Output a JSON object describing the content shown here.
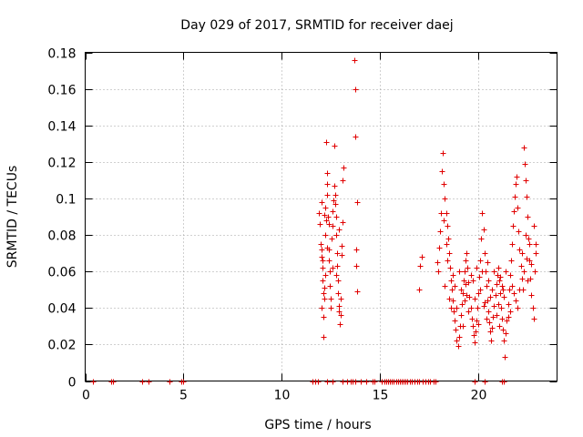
{
  "chart_data": {
    "type": "scatter",
    "title": "Day 029 of 2017, SRMTID for receiver daej",
    "xlabel": "GPS time / hours",
    "ylabel": "SRMTID / TECUs",
    "xlim": [
      0,
      24
    ],
    "ylim": [
      0,
      0.18
    ],
    "xticks": [
      0,
      5,
      10,
      15,
      20
    ],
    "xtick_labels": [
      "0",
      "5",
      "10",
      "15",
      "20"
    ],
    "yticks": [
      0,
      0.02,
      0.04,
      0.06,
      0.08,
      0.1,
      0.12,
      0.14,
      0.16,
      0.18
    ],
    "ytick_labels": [
      "0",
      "0.02",
      "0.04",
      "0.06",
      "0.08",
      "0.1",
      "0.12",
      "0.14",
      "0.16",
      "0.18"
    ],
    "grid": true,
    "marker": "+",
    "color": "#e00000",
    "series": [
      {
        "name": "SRMTID",
        "points": [
          [
            0.4,
            0.0
          ],
          [
            1.3,
            0.0
          ],
          [
            1.4,
            0.0
          ],
          [
            2.9,
            0.0
          ],
          [
            3.2,
            0.0
          ],
          [
            4.3,
            0.0
          ],
          [
            4.9,
            0.0
          ],
          [
            5.0,
            0.0
          ],
          [
            11.55,
            0.0
          ],
          [
            11.7,
            0.0
          ],
          [
            11.85,
            0.0
          ],
          [
            12.3,
            0.0
          ],
          [
            12.6,
            0.0
          ],
          [
            13.1,
            0.0
          ],
          [
            13.3,
            0.0
          ],
          [
            13.5,
            0.0
          ],
          [
            13.6,
            0.0
          ],
          [
            13.75,
            0.0
          ],
          [
            14.0,
            0.0
          ],
          [
            14.3,
            0.0
          ],
          [
            14.6,
            0.0
          ],
          [
            14.7,
            0.0
          ],
          [
            15.1,
            0.0
          ],
          [
            15.2,
            0.0
          ],
          [
            15.3,
            0.0
          ],
          [
            15.4,
            0.0
          ],
          [
            15.5,
            0.0
          ],
          [
            15.6,
            0.0
          ],
          [
            15.7,
            0.0
          ],
          [
            15.8,
            0.0
          ],
          [
            15.9,
            0.0
          ],
          [
            16.0,
            0.0
          ],
          [
            16.1,
            0.0
          ],
          [
            16.2,
            0.0
          ],
          [
            16.3,
            0.0
          ],
          [
            16.4,
            0.0
          ],
          [
            16.5,
            0.0
          ],
          [
            16.6,
            0.0
          ],
          [
            16.75,
            0.0
          ],
          [
            16.9,
            0.0
          ],
          [
            17.0,
            0.0
          ],
          [
            17.15,
            0.0
          ],
          [
            17.3,
            0.0
          ],
          [
            17.45,
            0.0
          ],
          [
            17.55,
            0.0
          ],
          [
            17.7,
            0.0
          ],
          [
            17.8,
            0.0
          ],
          [
            19.8,
            0.0
          ],
          [
            20.3,
            0.0
          ],
          [
            21.2,
            0.0
          ],
          [
            21.3,
            0.0
          ],
          [
            11.9,
            0.092
          ],
          [
            11.95,
            0.086
          ],
          [
            12.0,
            0.098
          ],
          [
            11.98,
            0.075
          ],
          [
            12.02,
            0.068
          ],
          [
            12.05,
            0.062
          ],
          [
            12.08,
            0.055
          ],
          [
            12.1,
            0.048
          ],
          [
            12.03,
            0.04
          ],
          [
            12.12,
            0.035
          ],
          [
            12.1,
            0.024
          ],
          [
            12.15,
            0.045
          ],
          [
            12.18,
            0.051
          ],
          [
            12.2,
            0.058
          ],
          [
            12.22,
            0.08
          ],
          [
            12.25,
            0.088
          ],
          [
            12.2,
            0.095
          ],
          [
            12.28,
            0.102
          ],
          [
            12.3,
            0.108
          ],
          [
            12.25,
            0.131
          ],
          [
            12.32,
            0.114
          ],
          [
            12.35,
            0.09
          ],
          [
            12.38,
            0.072
          ],
          [
            12.4,
            0.066
          ],
          [
            12.42,
            0.06
          ],
          [
            12.45,
            0.052
          ],
          [
            12.48,
            0.045
          ],
          [
            12.5,
            0.04
          ],
          [
            12.55,
            0.078
          ],
          [
            12.58,
            0.085
          ],
          [
            12.6,
            0.093
          ],
          [
            12.62,
            0.099
          ],
          [
            12.65,
            0.129
          ],
          [
            12.68,
            0.107
          ],
          [
            12.7,
            0.102
          ],
          [
            12.72,
            0.097
          ],
          [
            12.75,
            0.09
          ],
          [
            12.78,
            0.08
          ],
          [
            12.8,
            0.07
          ],
          [
            12.82,
            0.063
          ],
          [
            12.85,
            0.055
          ],
          [
            12.88,
            0.048
          ],
          [
            12.9,
            0.041
          ],
          [
            12.92,
            0.038
          ],
          [
            12.95,
            0.031
          ],
          [
            12.98,
            0.036
          ],
          [
            13.0,
            0.045
          ],
          [
            13.02,
            0.069
          ],
          [
            13.05,
            0.074
          ],
          [
            13.08,
            0.087
          ],
          [
            13.1,
            0.11
          ],
          [
            13.12,
            0.117
          ],
          [
            12.0,
            0.072
          ],
          [
            12.05,
            0.066
          ],
          [
            12.15,
            0.091
          ],
          [
            12.3,
            0.073
          ],
          [
            12.4,
            0.086
          ],
          [
            12.6,
            0.062
          ],
          [
            12.75,
            0.058
          ],
          [
            12.9,
            0.083
          ],
          [
            13.7,
            0.176
          ],
          [
            13.72,
            0.16
          ],
          [
            13.75,
            0.134
          ],
          [
            13.85,
            0.098
          ],
          [
            13.8,
            0.072
          ],
          [
            13.78,
            0.063
          ],
          [
            13.82,
            0.049
          ],
          [
            17.0,
            0.05
          ],
          [
            17.05,
            0.063
          ],
          [
            17.1,
            0.068
          ],
          [
            17.9,
            0.065
          ],
          [
            17.95,
            0.06
          ],
          [
            18.0,
            0.073
          ],
          [
            18.05,
            0.082
          ],
          [
            18.1,
            0.092
          ],
          [
            18.15,
            0.115
          ],
          [
            18.2,
            0.125
          ],
          [
            18.25,
            0.108
          ],
          [
            18.3,
            0.1
          ],
          [
            18.35,
            0.092
          ],
          [
            18.4,
            0.085
          ],
          [
            18.45,
            0.078
          ],
          [
            18.5,
            0.07
          ],
          [
            18.55,
            0.062
          ],
          [
            18.6,
            0.055
          ],
          [
            18.65,
            0.05
          ],
          [
            18.7,
            0.044
          ],
          [
            18.75,
            0.038
          ],
          [
            18.8,
            0.033
          ],
          [
            18.85,
            0.028
          ],
          [
            18.9,
            0.022
          ],
          [
            18.95,
            0.019
          ],
          [
            19.0,
            0.024
          ],
          [
            19.05,
            0.03
          ],
          [
            19.1,
            0.036
          ],
          [
            19.15,
            0.042
          ],
          [
            19.2,
            0.048
          ],
          [
            19.25,
            0.055
          ],
          [
            19.3,
            0.06
          ],
          [
            19.35,
            0.066
          ],
          [
            19.4,
            0.07
          ],
          [
            19.45,
            0.062
          ],
          [
            19.5,
            0.054
          ],
          [
            19.55,
            0.046
          ],
          [
            19.6,
            0.04
          ],
          [
            19.65,
            0.034
          ],
          [
            19.7,
            0.03
          ],
          [
            19.75,
            0.025
          ],
          [
            19.8,
            0.021
          ],
          [
            19.85,
            0.027
          ],
          [
            19.9,
            0.033
          ],
          [
            19.95,
            0.04
          ],
          [
            20.0,
            0.048
          ],
          [
            20.05,
            0.057
          ],
          [
            20.1,
            0.066
          ],
          [
            20.15,
            0.078
          ],
          [
            20.2,
            0.092
          ],
          [
            20.25,
            0.083
          ],
          [
            20.3,
            0.07
          ],
          [
            20.35,
            0.06
          ],
          [
            20.4,
            0.052
          ],
          [
            20.45,
            0.044
          ],
          [
            20.5,
            0.038
          ],
          [
            20.55,
            0.032
          ],
          [
            20.6,
            0.027
          ],
          [
            20.65,
            0.022
          ],
          [
            20.7,
            0.029
          ],
          [
            20.75,
            0.035
          ],
          [
            20.8,
            0.041
          ],
          [
            20.85,
            0.047
          ],
          [
            20.9,
            0.053
          ],
          [
            20.95,
            0.058
          ],
          [
            21.0,
            0.062
          ],
          [
            21.05,
            0.055
          ],
          [
            21.1,
            0.048
          ],
          [
            21.15,
            0.04
          ],
          [
            21.2,
            0.034
          ],
          [
            21.25,
            0.028
          ],
          [
            21.3,
            0.022
          ],
          [
            21.35,
            0.013
          ],
          [
            21.4,
            0.026
          ],
          [
            21.45,
            0.033
          ],
          [
            21.5,
            0.042
          ],
          [
            21.55,
            0.05
          ],
          [
            21.6,
            0.058
          ],
          [
            21.65,
            0.066
          ],
          [
            21.7,
            0.075
          ],
          [
            21.75,
            0.085
          ],
          [
            21.8,
            0.093
          ],
          [
            21.85,
            0.101
          ],
          [
            21.9,
            0.108
          ],
          [
            21.95,
            0.112
          ],
          [
            22.0,
            0.095
          ],
          [
            22.05,
            0.082
          ],
          [
            22.1,
            0.072
          ],
          [
            22.15,
            0.063
          ],
          [
            22.2,
            0.056
          ],
          [
            22.25,
            0.05
          ],
          [
            22.3,
            0.128
          ],
          [
            22.35,
            0.119
          ],
          [
            22.4,
            0.11
          ],
          [
            22.45,
            0.101
          ],
          [
            22.5,
            0.09
          ],
          [
            22.55,
            0.078
          ],
          [
            22.6,
            0.066
          ],
          [
            22.65,
            0.056
          ],
          [
            22.7,
            0.047
          ],
          [
            22.75,
            0.04
          ],
          [
            22.8,
            0.034
          ],
          [
            22.85,
            0.06
          ],
          [
            22.9,
            0.07
          ],
          [
            22.93,
            0.075
          ],
          [
            18.3,
            0.052
          ],
          [
            18.5,
            0.045
          ],
          [
            18.7,
            0.058
          ],
          [
            18.9,
            0.04
          ],
          [
            19.1,
            0.05
          ],
          [
            19.3,
            0.044
          ],
          [
            19.5,
            0.038
          ],
          [
            19.7,
            0.055
          ],
          [
            19.9,
            0.062
          ],
          [
            20.1,
            0.05
          ],
          [
            20.3,
            0.043
          ],
          [
            20.5,
            0.055
          ],
          [
            20.7,
            0.05
          ],
          [
            20.9,
            0.036
          ],
          [
            21.1,
            0.057
          ],
          [
            21.3,
            0.046
          ],
          [
            21.5,
            0.035
          ],
          [
            21.7,
            0.052
          ],
          [
            21.9,
            0.044
          ],
          [
            22.1,
            0.05
          ],
          [
            22.3,
            0.06
          ],
          [
            22.5,
            0.055
          ],
          [
            22.7,
            0.064
          ],
          [
            18.4,
            0.066
          ],
          [
            18.6,
            0.04
          ],
          [
            18.8,
            0.052
          ],
          [
            19.0,
            0.06
          ],
          [
            19.2,
            0.03
          ],
          [
            19.4,
            0.047
          ],
          [
            19.6,
            0.058
          ],
          [
            19.8,
            0.045
          ],
          [
            20.0,
            0.031
          ],
          [
            20.2,
            0.06
          ],
          [
            20.4,
            0.034
          ],
          [
            20.6,
            0.046
          ],
          [
            20.8,
            0.06
          ],
          [
            21.0,
            0.042
          ],
          [
            21.2,
            0.052
          ],
          [
            21.4,
            0.06
          ],
          [
            21.6,
            0.038
          ],
          [
            21.8,
            0.048
          ],
          [
            22.0,
            0.04
          ],
          [
            22.2,
            0.07
          ],
          [
            22.4,
            0.08
          ],
          [
            22.6,
            0.075
          ],
          [
            22.8,
            0.085
          ],
          [
            21.25,
            0.05
          ],
          [
            20.45,
            0.065
          ],
          [
            19.35,
            0.053
          ],
          [
            18.25,
            0.088
          ],
          [
            18.35,
            0.075
          ],
          [
            22.45,
            0.067
          ],
          [
            20.25,
            0.041
          ],
          [
            21.05,
            0.03
          ]
        ]
      }
    ]
  }
}
